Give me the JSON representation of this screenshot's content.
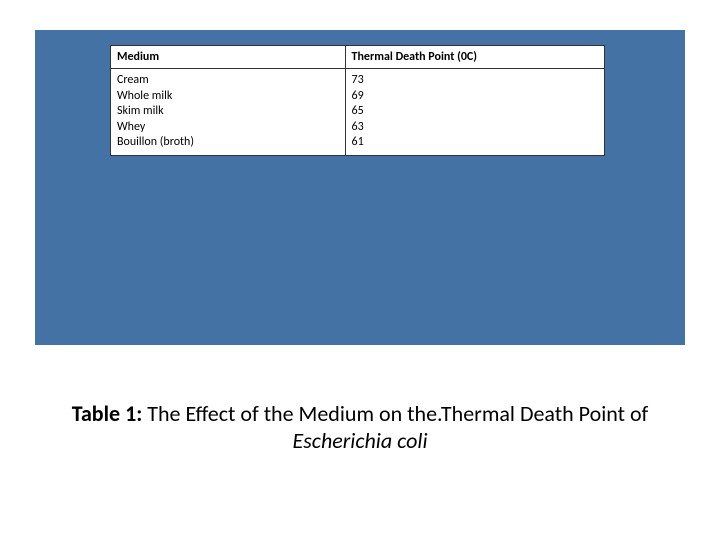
{
  "table": {
    "headers": {
      "medium": "Medium",
      "tdp": "Thermal Death Point (0C)"
    },
    "mediums": [
      "Cream",
      "Whole milk",
      "Skim milk",
      "Whey",
      "Bouillon (broth)"
    ],
    "values": [
      "73",
      "69",
      "65",
      "63",
      "61"
    ]
  },
  "caption": {
    "label": "Table 1: ",
    "text": "The Effect of the Medium on the.Thermal Death Point of",
    "species": "Escherichia coli"
  },
  "colors": {
    "box_bg": "#4472a4",
    "page_bg": "#ffffff",
    "border": "#333333",
    "text": "#000000"
  }
}
